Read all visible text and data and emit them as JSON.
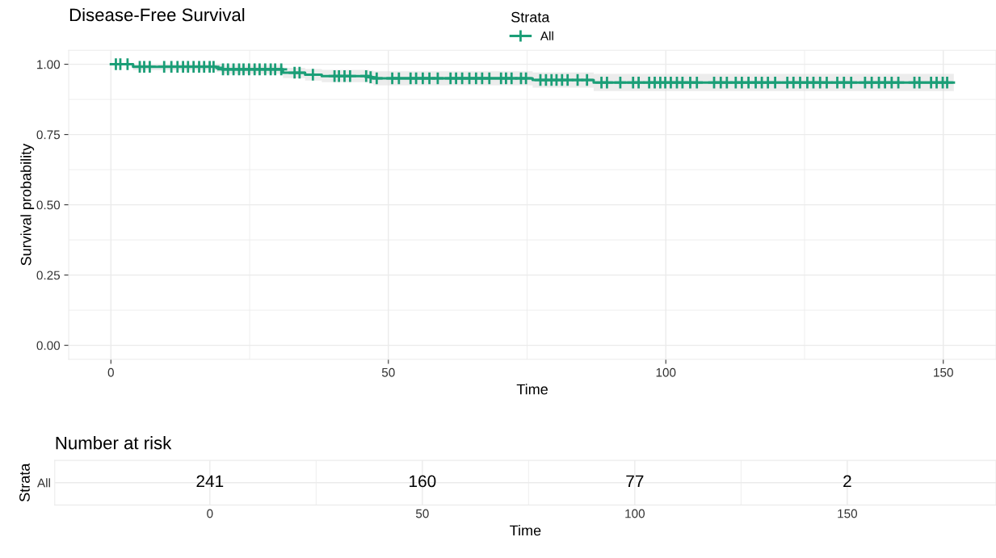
{
  "chart_data": [
    {
      "type": "step",
      "title": "Disease-Free Survival",
      "xlabel": "Time",
      "ylabel": "Survival probability",
      "legend_title": "Strata",
      "legend": "top",
      "grid": true,
      "xlim": [
        -7.6,
        159.5
      ],
      "xticks": [
        0,
        50,
        100,
        150
      ],
      "ylim": [
        -0.05,
        1.05
      ],
      "yticks": [
        {
          "value": 0,
          "label": "0.00"
        },
        {
          "value": 0.25,
          "label": "0.25"
        },
        {
          "value": 0.5,
          "label": "0.50"
        },
        {
          "value": 0.75,
          "label": "0.75"
        },
        {
          "value": 1,
          "label": "1.00"
        }
      ],
      "series": [
        {
          "name": "All",
          "color": "#1b9e77",
          "x": [
            0,
            4,
            19,
            20,
            31,
            35,
            38,
            46.5,
            47.3,
            76,
            87,
            151.9
          ],
          "values": [
            1.0,
            0.991,
            0.987,
            0.982,
            0.97,
            0.963,
            0.958,
            0.954,
            0.95,
            0.944,
            0.935,
            0.935
          ],
          "lower": [
            1.0,
            0.979,
            0.973,
            0.966,
            0.951,
            0.942,
            0.936,
            0.93,
            0.925,
            0.917,
            0.905,
            0.905
          ],
          "upper": [
            1.0,
            1.0,
            1.0,
            0.996,
            0.987,
            0.983,
            0.98,
            0.978,
            0.975,
            0.971,
            0.966,
            0.966
          ]
        },
        {
          "type": "scatter",
          "marker": "cross",
          "color": "#1b9e77",
          "x": [
            0.9,
            1.7,
            3.0,
            5.2,
            6.0,
            7.0,
            9.6,
            10.9,
            12.0,
            13.0,
            13.9,
            14.9,
            15.9,
            16.8,
            17.8,
            18.5,
            20.2,
            21.1,
            22.1,
            23.1,
            23.9,
            24.9,
            25.9,
            26.8,
            27.8,
            28.8,
            29.6,
            30.7,
            33.1,
            34.0,
            36.4,
            40.3,
            41.1,
            42.1,
            43.1,
            46.0,
            46.8,
            47.9,
            50.7,
            51.9,
            54.0,
            55.0,
            56.2,
            57.4,
            58.9,
            61.2,
            62.2,
            63.3,
            64.6,
            65.8,
            66.9,
            68.2,
            70.3,
            71.2,
            72.2,
            73.9,
            74.8,
            77.4,
            78.4,
            79.4,
            80.3,
            81.3,
            82.3,
            84.1,
            85.8,
            88.4,
            89.4,
            91.8,
            94.1,
            95.1,
            97.0,
            98.0,
            99.0,
            99.9,
            100.9,
            102.0,
            103.0,
            104.4,
            105.6,
            108.7,
            109.9,
            111.0,
            112.6,
            113.7,
            114.9,
            116.2,
            117.3,
            118.4,
            119.7,
            121.9,
            123.0,
            124.2,
            125.5,
            126.6,
            127.8,
            129.0,
            130.9,
            132.1,
            133.4,
            135.9,
            137.1,
            138.4,
            139.5,
            140.7,
            141.9,
            144.8,
            145.7,
            147.8,
            148.8,
            149.9,
            150.7
          ],
          "values": [
            1.0,
            1.0,
            1.0,
            0.991,
            0.991,
            0.991,
            0.991,
            0.991,
            0.991,
            0.991,
            0.991,
            0.991,
            0.991,
            0.991,
            0.991,
            0.991,
            0.982,
            0.982,
            0.982,
            0.982,
            0.982,
            0.982,
            0.982,
            0.982,
            0.982,
            0.982,
            0.982,
            0.982,
            0.97,
            0.97,
            0.963,
            0.958,
            0.958,
            0.958,
            0.958,
            0.958,
            0.954,
            0.95,
            0.95,
            0.95,
            0.95,
            0.95,
            0.95,
            0.95,
            0.95,
            0.95,
            0.95,
            0.95,
            0.95,
            0.95,
            0.95,
            0.95,
            0.95,
            0.95,
            0.95,
            0.95,
            0.95,
            0.944,
            0.944,
            0.944,
            0.944,
            0.944,
            0.944,
            0.944,
            0.944,
            0.935,
            0.935,
            0.935,
            0.935,
            0.935,
            0.935,
            0.935,
            0.935,
            0.935,
            0.935,
            0.935,
            0.935,
            0.935,
            0.935,
            0.935,
            0.935,
            0.935,
            0.935,
            0.935,
            0.935,
            0.935,
            0.935,
            0.935,
            0.935,
            0.935,
            0.935,
            0.935,
            0.935,
            0.935,
            0.935,
            0.935,
            0.935,
            0.935,
            0.935,
            0.935,
            0.935,
            0.935,
            0.935,
            0.935,
            0.935,
            0.935,
            0.935,
            0.935,
            0.935,
            0.935,
            0.935
          ]
        }
      ]
    },
    {
      "type": "heatmap",
      "title": "Number at risk",
      "xlabel": "Time",
      "ylabel": "Strata",
      "grid": true,
      "data_labels": true,
      "categories": [
        "0",
        "50",
        "100",
        "150"
      ],
      "y_categories": [
        "All"
      ],
      "cells": [
        [
          241,
          160,
          77,
          2
        ]
      ]
    }
  ]
}
